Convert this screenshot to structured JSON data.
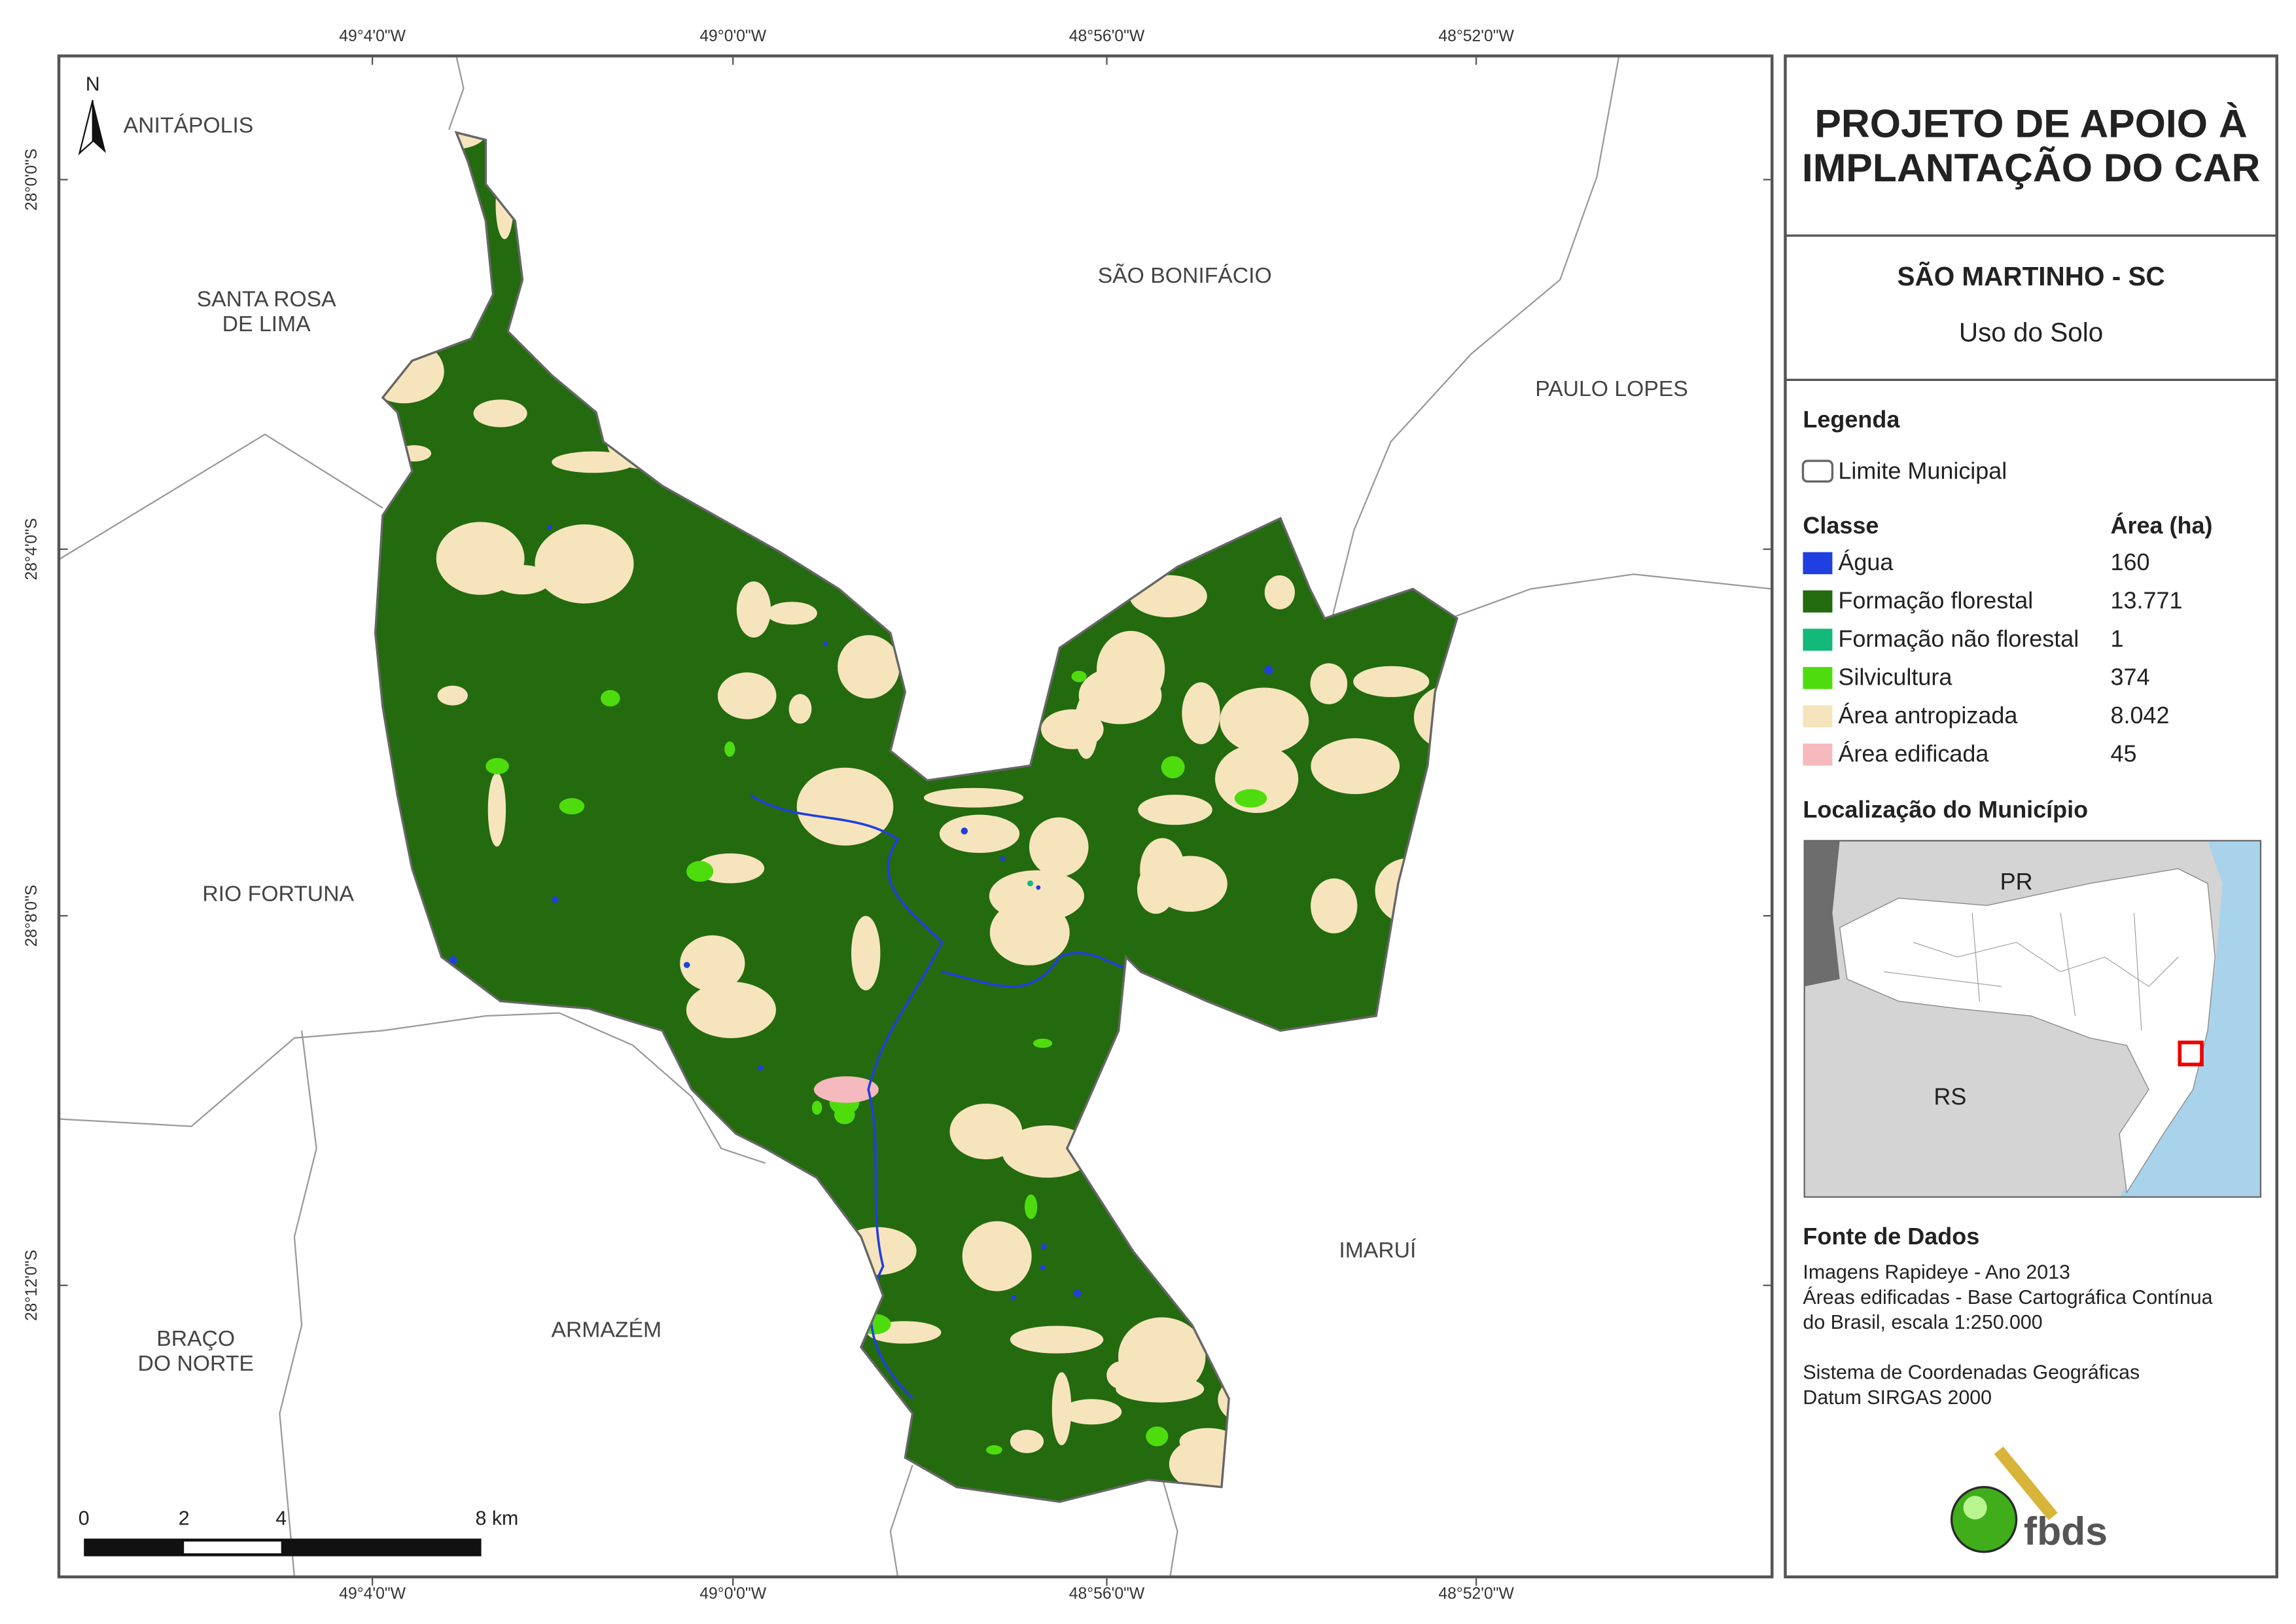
{
  "panel": {
    "title": [
      "PROJETO DE APOIO À",
      "IMPLANTAÇÃO DO CAR"
    ],
    "municipality": "SÃO MARTINHO - SC",
    "subtitle": "Uso do Solo"
  },
  "legend": {
    "title": "Legenda",
    "boundary": "Limite Municipal",
    "class_header": "Classe",
    "area_header": "Área (ha)",
    "classes": [
      {
        "name": "Água",
        "color": "#1f3fe0",
        "area": "160"
      },
      {
        "name": "Formação florestal",
        "color": "#236b0e",
        "area": "13.771"
      },
      {
        "name": "Formação não florestal",
        "color": "#14b87a",
        "area": "1"
      },
      {
        "name": "Silvicultura",
        "color": "#4fdc0f",
        "area": "374"
      },
      {
        "name": "Área antropizada",
        "color": "#f6e4bd",
        "area": "8.042"
      },
      {
        "name": "Área edificada",
        "color": "#f6b9bd",
        "area": "45"
      }
    ]
  },
  "location": {
    "title": "Localização do Município",
    "labels": [
      "PR",
      "RS"
    ]
  },
  "sources": {
    "title": "Fonte de Dados",
    "lines": [
      "Imagens Rapideye - Ano 2013",
      "Áreas edificadas - Base Cartográfica Contínua",
      "do Brasil, escala 1:250.000",
      "",
      "Sistema de Coordenadas Geográficas",
      "Datum SIRGAS 2000"
    ]
  },
  "logo": "fbds",
  "map": {
    "north": "N",
    "places": [
      [
        "ANITÁPOLIS"
      ],
      [
        "SANTA ROSA",
        "DE LIMA"
      ],
      [
        "SÃO BONIFÁCIO"
      ],
      [
        "PAULO LOPES"
      ],
      [
        "RIO FORTUNA"
      ],
      [
        "IMARUÍ"
      ],
      [
        "ARMAZÉM"
      ],
      [
        "BRAÇO",
        "DO NORTE"
      ]
    ],
    "lon": [
      "49°4'0\"W",
      "49°0'0\"W",
      "48°56'0\"W",
      "48°52'0\"W"
    ],
    "lat": [
      "28°0'0\"S",
      "28°4'0\"S",
      "28°8'0\"S",
      "28°12'0\"S"
    ],
    "scale": [
      "0",
      "2",
      "4",
      "8 km"
    ]
  }
}
